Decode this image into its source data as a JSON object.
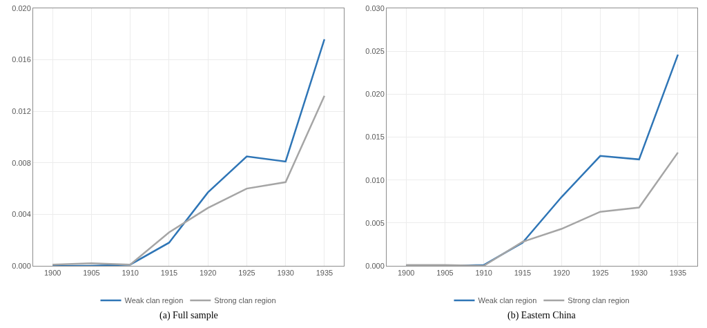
{
  "chart_data": [
    {
      "type": "line",
      "title": "(a) Full sample",
      "x": [
        1900,
        1905,
        1910,
        1915,
        1920,
        1925,
        1930,
        1935
      ],
      "series": [
        {
          "name": "Weak clan region",
          "color": "#2e75b6",
          "values": [
            0.0,
            0.0,
            0.0001,
            0.0018,
            0.0057,
            0.0085,
            0.0081,
            0.0176
          ]
        },
        {
          "name": "Strong clan region",
          "color": "#a5a5a5",
          "values": [
            0.0001,
            0.0002,
            0.0001,
            0.0026,
            0.0045,
            0.006,
            0.0065,
            0.0132
          ]
        }
      ],
      "xlim": [
        1897.5,
        1937.5
      ],
      "xticks": [
        1900,
        1905,
        1910,
        1915,
        1920,
        1925,
        1930,
        1935
      ],
      "ylim": [
        0,
        0.02
      ],
      "yticks": [
        {
          "value": 0,
          "label": "0.000"
        },
        {
          "value": 0.004,
          "label": "0.004"
        },
        {
          "value": 0.008,
          "label": "0.008"
        },
        {
          "value": 0.012,
          "label": "0.012"
        },
        {
          "value": 0.016,
          "label": "0.016"
        },
        {
          "value": 0.02,
          "label": "0.020"
        }
      ],
      "grid": true,
      "legend": "bottom",
      "marker": "none",
      "line_style": "solid"
    },
    {
      "type": "line",
      "title": "(b) Eastern China",
      "x": [
        1900,
        1905,
        1910,
        1915,
        1920,
        1925,
        1930,
        1935
      ],
      "series": [
        {
          "name": "Weak clan region",
          "color": "#2e75b6",
          "values": [
            0.0,
            0.0,
            0.0001,
            0.0027,
            0.008,
            0.0128,
            0.0124,
            0.0246
          ]
        },
        {
          "name": "Strong clan region",
          "color": "#a5a5a5",
          "values": [
            0.0001,
            0.0001,
            0.0,
            0.0028,
            0.0043,
            0.0063,
            0.0068,
            0.0132
          ]
        }
      ],
      "xlim": [
        1897.5,
        1937.5
      ],
      "xticks": [
        1900,
        1905,
        1910,
        1915,
        1920,
        1925,
        1930,
        1935
      ],
      "ylim": [
        0,
        0.03
      ],
      "yticks": [
        {
          "value": 0,
          "label": "0.000"
        },
        {
          "value": 0.005,
          "label": "0.005"
        },
        {
          "value": 0.01,
          "label": "0.010"
        },
        {
          "value": 0.015,
          "label": "0.015"
        },
        {
          "value": 0.02,
          "label": "0.020"
        },
        {
          "value": 0.025,
          "label": "0.025"
        },
        {
          "value": 0.03,
          "label": "0.030"
        }
      ],
      "grid": true,
      "legend": "bottom",
      "marker": "none",
      "line_style": "solid"
    }
  ]
}
